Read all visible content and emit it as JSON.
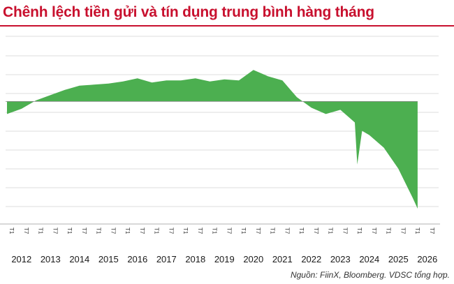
{
  "title": "Chênh lệch tiền gửi và tín dụng trung bình hàng tháng",
  "source": "Nguồn: FiinX, Bloomberg. VDSC tổng hợp.",
  "colors": {
    "title": "#c8102e",
    "area": "#4caf50",
    "grid": "#dddddd",
    "baseline": "#888888"
  },
  "chart_data": {
    "type": "area",
    "title": "Chênh lệch tiền gửi và tín dụng trung bình hàng tháng",
    "xlabel": "",
    "ylabel": "",
    "grid": true,
    "legend": "none",
    "x_tick_labels": [
      "T1",
      "T7"
    ],
    "years": [
      "2012",
      "2013",
      "2014",
      "2015",
      "2016",
      "2017",
      "2018",
      "2019",
      "2020",
      "2021",
      "2022",
      "2023",
      "2024",
      "2025",
      "2026"
    ],
    "ylim": [
      -5.3,
      3.1
    ],
    "series": [
      {
        "points": [
          [
            "2012-01",
            -0.6
          ],
          [
            "2012-07",
            -0.35
          ],
          [
            "2013-01",
            0.05
          ],
          [
            "2013-07",
            0.3
          ],
          [
            "2014-01",
            0.55
          ],
          [
            "2014-07",
            0.75
          ],
          [
            "2015-01",
            0.8
          ],
          [
            "2015-07",
            0.85
          ],
          [
            "2016-01",
            0.95
          ],
          [
            "2016-07",
            1.1
          ],
          [
            "2017-01",
            0.9
          ],
          [
            "2017-07",
            1.0
          ],
          [
            "2018-01",
            1.0
          ],
          [
            "2018-07",
            1.1
          ],
          [
            "2019-01",
            0.95
          ],
          [
            "2019-07",
            1.05
          ],
          [
            "2020-01",
            1.0
          ],
          [
            "2020-07",
            1.5
          ],
          [
            "2021-01",
            1.2
          ],
          [
            "2021-07",
            1.0
          ],
          [
            "2022-01",
            0.2
          ],
          [
            "2022-07",
            -0.3
          ],
          [
            "2023-01",
            -0.6
          ],
          [
            "2023-07",
            -0.4
          ],
          [
            "2024-01",
            -1.0
          ],
          [
            "2024-02",
            -3.0
          ],
          [
            "2024-04",
            -1.4
          ],
          [
            "2024-07",
            -1.6
          ],
          [
            "2025-01",
            -2.2
          ],
          [
            "2025-07",
            -3.2
          ],
          [
            "2026-01",
            -4.6
          ],
          [
            "2026-03",
            -5.1
          ]
        ]
      }
    ]
  }
}
